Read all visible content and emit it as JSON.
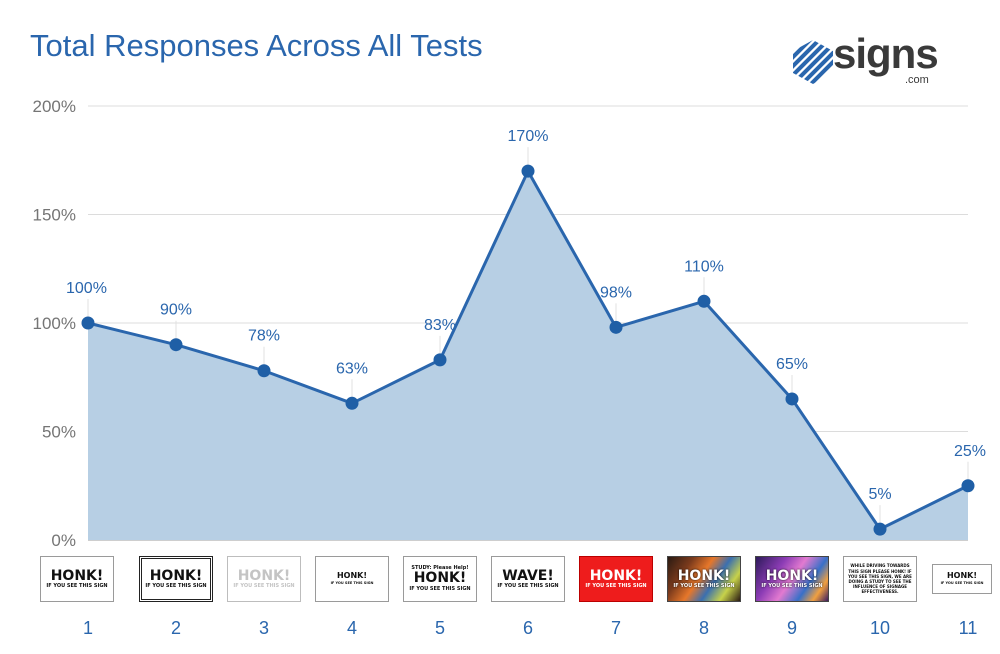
{
  "chart_data": {
    "type": "area",
    "title": "Total Responses Across All Tests",
    "categories": [
      "1",
      "2",
      "3",
      "4",
      "5",
      "6",
      "7",
      "8",
      "9",
      "10",
      "11"
    ],
    "values": [
      100,
      90,
      78,
      63,
      83,
      170,
      98,
      110,
      65,
      5,
      25
    ],
    "data_labels": [
      "100%",
      "90%",
      "78%",
      "63%",
      "83%",
      "170%",
      "98%",
      "110%",
      "65%",
      "5%",
      "25%"
    ],
    "y_ticks": [
      0,
      50,
      100,
      150,
      200
    ],
    "y_tick_labels": [
      "0%",
      "50%",
      "100%",
      "150%",
      "200%"
    ],
    "ylim": [
      0,
      200
    ],
    "xlabel": "",
    "ylabel": "",
    "grid": true,
    "legend": "none",
    "colors": {
      "line": "#2a66ad",
      "fill": "#b7cfe4",
      "marker": "#1f5fa6",
      "grid": "#dcdcdc",
      "title": "#2a66ad",
      "tick": "#757575"
    }
  },
  "logo": {
    "text": "signs",
    "sub": ".com"
  },
  "signs": [
    {
      "style": "white",
      "lines": [
        "HONK!",
        "IF YOU SEE THIS SIGN"
      ]
    },
    {
      "style": "white-double-border",
      "lines": [
        "HONK!",
        "IF YOU SEE THIS SIGN"
      ]
    },
    {
      "style": "faded",
      "lines": [
        "HONK!",
        "IF YOU SEE THIS SIGN"
      ]
    },
    {
      "style": "white-small",
      "lines": [
        "HONK!",
        "IF YOU SEE THIS SIGN"
      ]
    },
    {
      "style": "study",
      "lines": [
        "STUDY: Please Help!",
        "HONK!",
        "IF YOU SEE THIS SIGN"
      ]
    },
    {
      "style": "white",
      "lines": [
        "WAVE!",
        "IF YOU SEE THIS SIGN"
      ]
    },
    {
      "style": "red",
      "lines": [
        "HONK!",
        "IF YOU SEE THIS SIGN"
      ]
    },
    {
      "style": "photo-orange",
      "lines": [
        "HONK!",
        "IF YOU SEE THIS SIGN"
      ]
    },
    {
      "style": "photo-purple",
      "lines": [
        "HONK!",
        "IF YOU SEE THIS SIGN"
      ]
    },
    {
      "style": "paragraph",
      "lines": [
        "WHILE DRIVING TOWARDS THIS SIGN PLEASE HONK! IF YOU SEE THIS SIGN, WE ARE DOING A STUDY TO SEE THE INFLUENCE OF SIGNAGE EFFECTIVENESS."
      ]
    },
    {
      "style": "white-tiny",
      "lines": [
        "HONK!",
        "IF YOU SEE THIS SIGN"
      ]
    }
  ]
}
